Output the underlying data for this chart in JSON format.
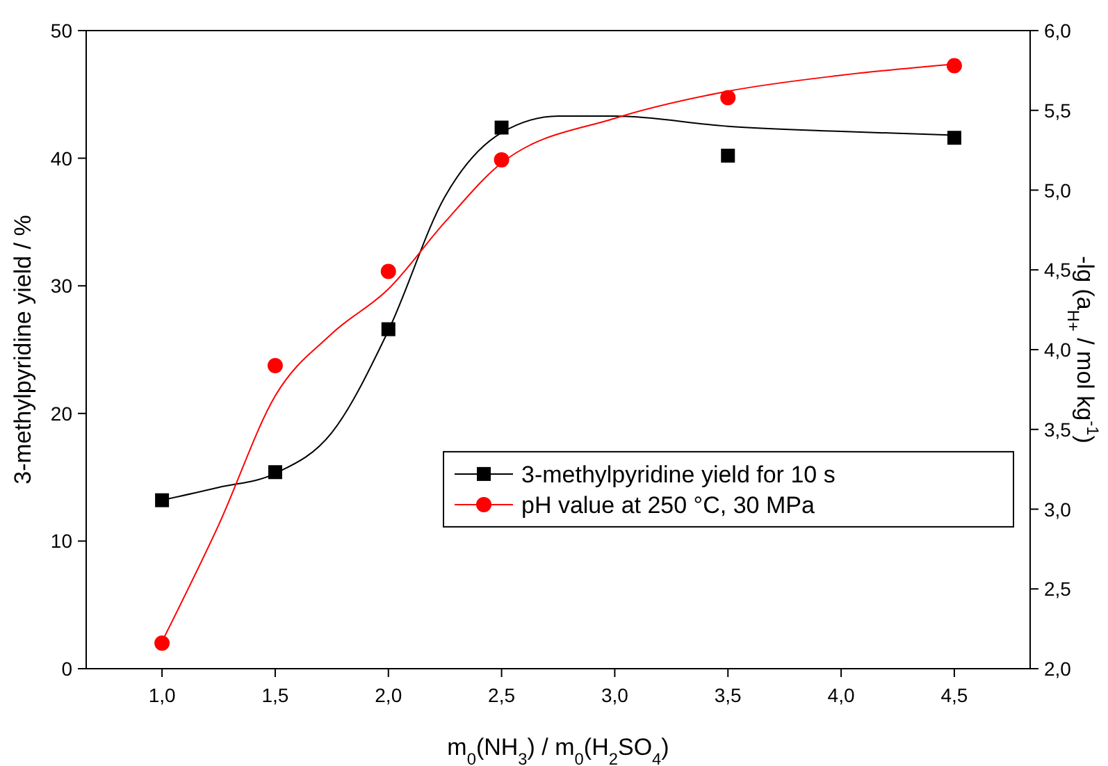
{
  "chart_data": {
    "type": "scatter",
    "xlabel": "m$_{0}$(NH$_{3}$) / m$_{0}$(H$_{2}$SO$_{4}$)",
    "ylabel": "3-methylpyridine yield / %",
    "y2label": "-lg (a$_{H+}$ / mol kg$^{-1}$)",
    "xlim": [
      0.665,
      4.835
    ],
    "xticks": [
      {
        "value": 1,
        "label": "1,0"
      },
      {
        "value": 1.5,
        "label": "1,5"
      },
      {
        "value": 2,
        "label": "2,0"
      },
      {
        "value": 2.5,
        "label": "2,5"
      },
      {
        "value": 3,
        "label": "3,0"
      },
      {
        "value": 3.5,
        "label": "3,5"
      },
      {
        "value": 4,
        "label": "4,0"
      },
      {
        "value": 4.5,
        "label": "4,5"
      }
    ],
    "ylim": [
      0,
      50
    ],
    "yticks": [
      0,
      10,
      20,
      30,
      40,
      50
    ],
    "y2lim": [
      2,
      6
    ],
    "y2ticks": [
      {
        "value": 2,
        "label": "2,0"
      },
      {
        "value": 2.5,
        "label": "2,5"
      },
      {
        "value": 3,
        "label": "3,0"
      },
      {
        "value": 3.5,
        "label": "3,5"
      },
      {
        "value": 4,
        "label": "4,0"
      },
      {
        "value": 4.5,
        "label": "4,5"
      },
      {
        "value": 5,
        "label": "5,0"
      },
      {
        "value": 5.5,
        "label": "5,5"
      },
      {
        "value": 6,
        "label": "6,0"
      }
    ],
    "legend": "right",
    "grid": false,
    "series": [
      {
        "type": "line",
        "color": "#000000",
        "marker": "none",
        "x": [
          1,
          1.25,
          1.5,
          1.75,
          2,
          2.25,
          2.5,
          2.75,
          3,
          3.5,
          4,
          4.5
        ],
        "values": [
          13.2,
          14.2,
          15.3,
          18.5,
          26.5,
          37,
          42,
          43.3,
          43.3,
          42.5,
          42.1,
          41.8
        ]
      },
      {
        "type": "line",
        "color": "#ff0000",
        "marker": "none",
        "axis": "y2",
        "x": [
          1,
          1.25,
          1.5,
          1.75,
          2,
          2.25,
          2.5,
          3,
          3.5,
          4,
          4.5
        ],
        "values": [
          2.17,
          2.9,
          3.71,
          4.1,
          4.38,
          4.8,
          5.17,
          5.45,
          5.62,
          5.72,
          5.79
        ]
      },
      {
        "name": "3-methylpyridine yield for 10 s",
        "color": "#000000",
        "marker": "square",
        "x": [
          1,
          1.5,
          2,
          2.5,
          3.5,
          4.5
        ],
        "values": [
          13.2,
          15.4,
          26.6,
          42.4,
          40.2,
          41.6
        ]
      },
      {
        "name": "pH value at 250 °C, 30 MPa",
        "color": "#ff0000",
        "marker": "circle",
        "axis": "y2",
        "x": [
          1,
          1.5,
          2,
          2.5,
          3.5,
          4.5
        ],
        "values": [
          2.16,
          3.9,
          4.49,
          5.19,
          5.58,
          5.78
        ]
      }
    ]
  }
}
